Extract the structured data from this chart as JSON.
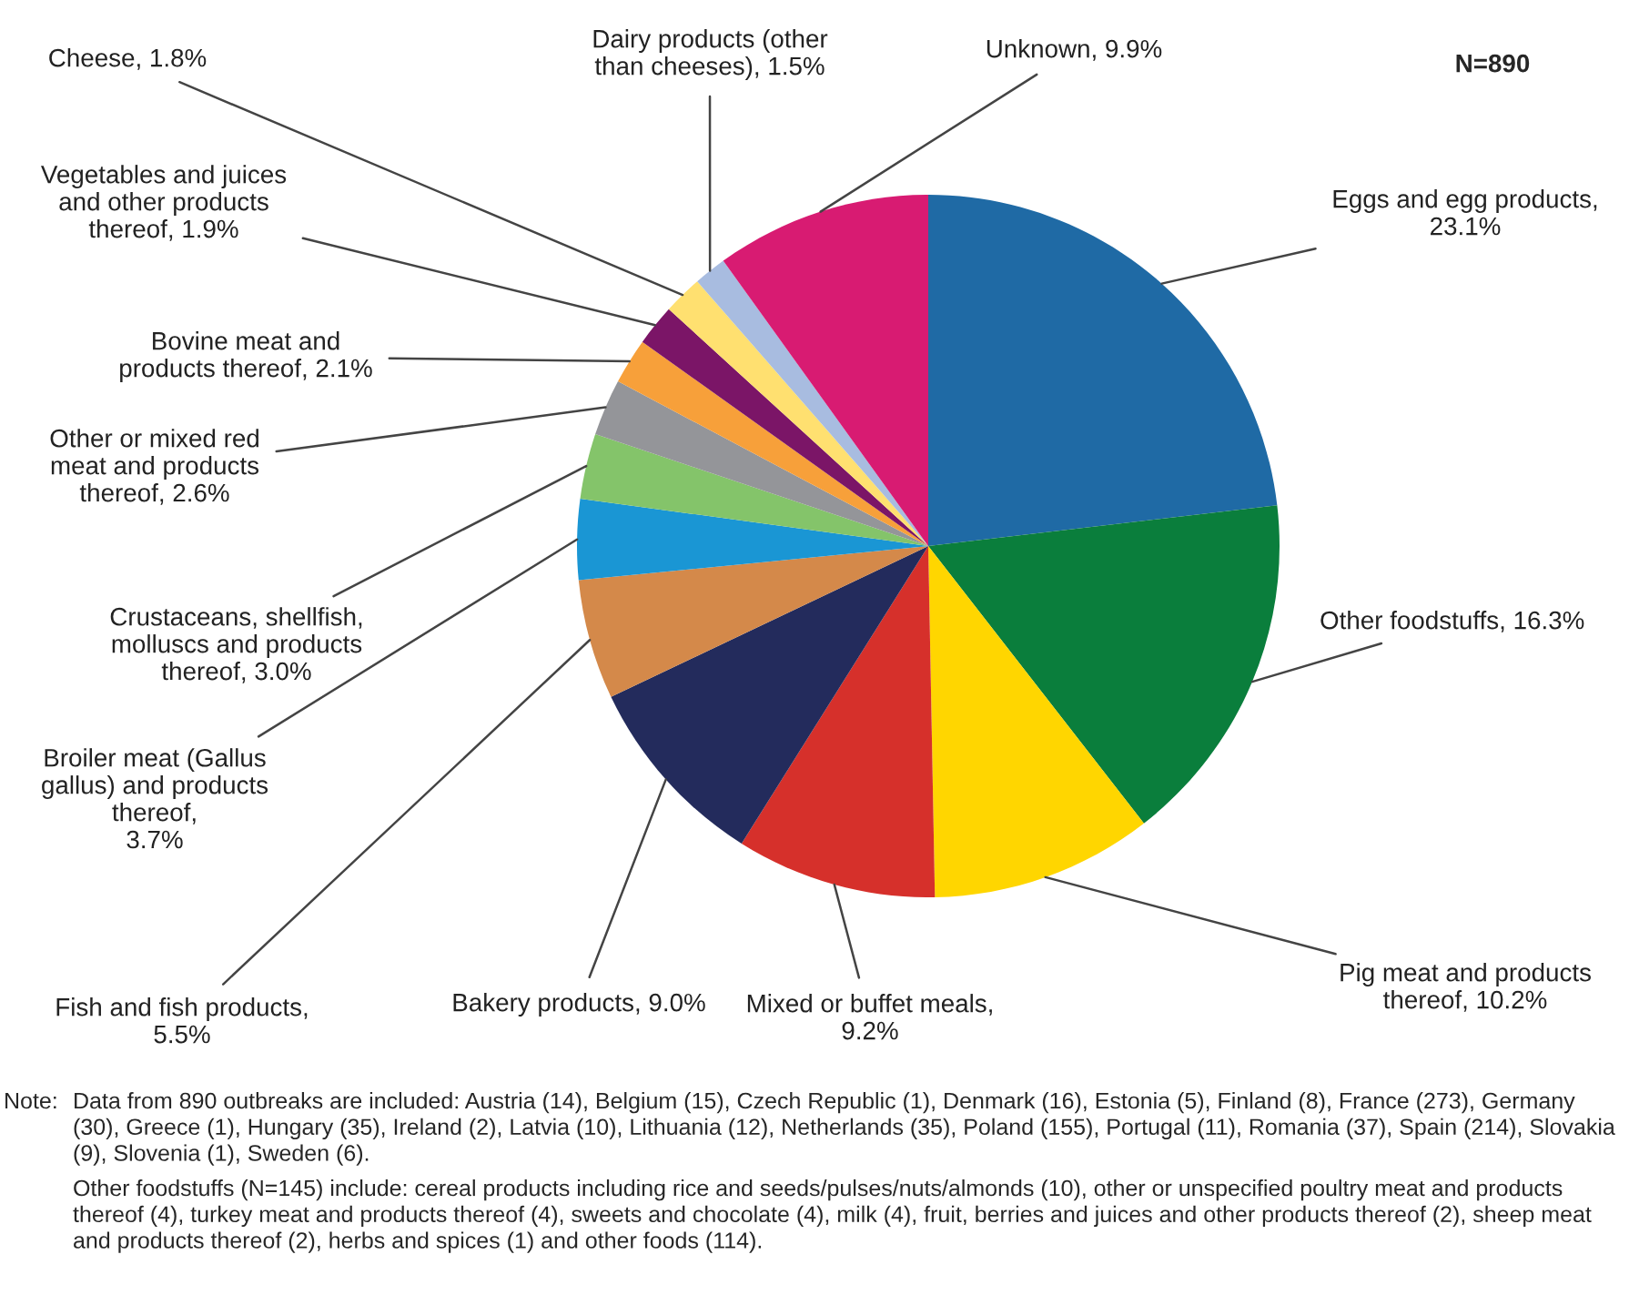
{
  "chart_data": {
    "type": "pie",
    "categories": [
      "Eggs and egg products,\n23.1%",
      "Other foodstuffs, 16.3%",
      "Pig meat and products\nthereof, 10.2%",
      "Mixed or buffet meals,\n9.2%",
      "Bakery products, 9.0%",
      "Fish and fish products,\n5.5%",
      "Broiler meat (Gallus\ngallus) and products\nthereof,\n3.7%",
      "Crustaceans, shellfish,\nmolluscs and products\nthereof, 3.0%",
      "Other or mixed red\nmeat and products\nthereof, 2.6%",
      "Bovine meat and\nproducts thereof, 2.1%",
      "Vegetables and juices\nand other products\nthereof, 1.9%",
      "Cheese, 1.8%",
      "Dairy products (other\nthan cheeses), 1.5%",
      "Unknown, 9.9%"
    ],
    "values": [
      23.1,
      16.3,
      10.2,
      9.2,
      9.0,
      5.5,
      3.7,
      3.0,
      2.6,
      2.1,
      1.9,
      1.8,
      1.5,
      9.9
    ],
    "colors": [
      "#1f6aa5",
      "#0a7e3c",
      "#ffd600",
      "#d6302b",
      "#232b5c",
      "#d4894a",
      "#1a96d4",
      "#84c46a",
      "#949599",
      "#f7a03a",
      "#7b1567",
      "#ffe070",
      "#a8bce0",
      "#d81b72"
    ],
    "annotations": [
      "N=890",
      "Note:",
      "Data from 890 outbreaks are included: Austria (14), Belgium (15), Czech Republic (1), Denmark (16), Estonia (5), Finland (8), France (273), Germany (30), Greece (1), Hungary (35), Ireland (2), Latvia (10), Lithuania (12), Netherlands (35), Poland (155), Portugal (11), Romania (37), Spain (214), Slovakia (9), Slovenia (1), Sweden (6).",
      "Other foodstuffs (N=145) include: cereal products including rice and seeds/pulses/nuts/almonds (10), other or unspecified poultry meat and products thereof (4), turkey meat and products thereof (4), sweets and chocolate (4), milk (4), fruit, berries and juices and other products thereof (2), sheep meat and products thereof (2), herbs and spices (1) and other foods (114)."
    ]
  }
}
